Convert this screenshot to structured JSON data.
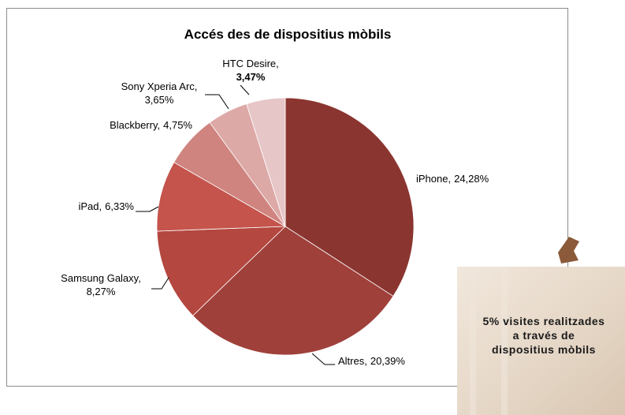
{
  "chart_data": {
    "type": "pie",
    "title": "Accés des de dispositius mòbils",
    "categories": [
      "iPhone,",
      "Altres,",
      "Samsung Galaxy,",
      "iPad,",
      "Blackberry,",
      "Sony Xperia Arc,",
      "HTC Desire,"
    ],
    "values": [
      24.28,
      20.39,
      8.27,
      6.33,
      4.75,
      3.65,
      3.47
    ],
    "value_labels": [
      "24,28%",
      "20,39%",
      "8,27%",
      "6,33%",
      "4,75%",
      "3,65%",
      "3,47%"
    ],
    "colors": [
      "#8b3530",
      "#a0403b",
      "#b4473f",
      "#c4544c",
      "#cf8480",
      "#dca9a7",
      "#e7c6c7"
    ],
    "annotation": [
      "5% visites realitzades",
      "a través de",
      "dispositius mòbils"
    ]
  }
}
